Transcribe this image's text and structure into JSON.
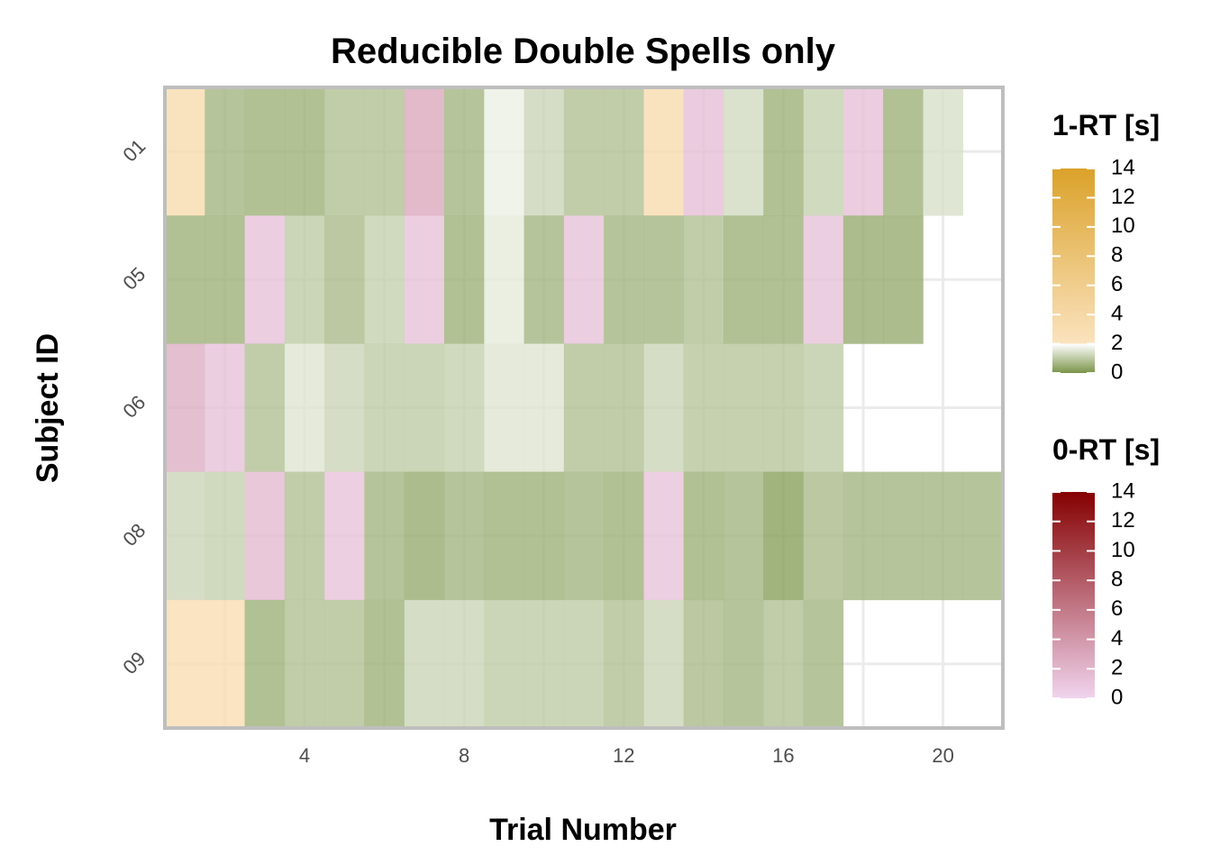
{
  "chart_data": {
    "type": "heatmap",
    "title": "Reducible Double Spells only",
    "xlabel": "Trial Number",
    "ylabel": "Subject ID",
    "x_ticks": [
      4,
      8,
      12,
      16,
      20
    ],
    "xlim": [
      0.5,
      21.5
    ],
    "subjects": [
      "01",
      "05",
      "06",
      "08",
      "09"
    ],
    "rows": [
      {
        "subject": "01",
        "cells": [
          {
            "trial": 1,
            "scale": "1-RT",
            "value": 3.5
          },
          {
            "trial": 2,
            "scale": "1-RT",
            "value": 0.6
          },
          {
            "trial": 3,
            "scale": "1-RT",
            "value": 0.5
          },
          {
            "trial": 4,
            "scale": "1-RT",
            "value": 0.5
          },
          {
            "trial": 5,
            "scale": "1-RT",
            "value": 0.8
          },
          {
            "trial": 6,
            "scale": "1-RT",
            "value": 0.8
          },
          {
            "trial": 7,
            "scale": "0-RT",
            "value": 3.0
          },
          {
            "trial": 8,
            "scale": "1-RT",
            "value": 0.6
          },
          {
            "trial": 9,
            "scale": "1-RT",
            "value": 1.7
          },
          {
            "trial": 10,
            "scale": "1-RT",
            "value": 1.2
          },
          {
            "trial": 11,
            "scale": "1-RT",
            "value": 0.8
          },
          {
            "trial": 12,
            "scale": "1-RT",
            "value": 0.8
          },
          {
            "trial": 13,
            "scale": "1-RT",
            "value": 3.5
          },
          {
            "trial": 14,
            "scale": "0-RT",
            "value": 1.5
          },
          {
            "trial": 15,
            "scale": "1-RT",
            "value": 1.3
          },
          {
            "trial": 16,
            "scale": "1-RT",
            "value": 0.5
          },
          {
            "trial": 17,
            "scale": "1-RT",
            "value": 1.1
          },
          {
            "trial": 18,
            "scale": "0-RT",
            "value": 1.4
          },
          {
            "trial": 19,
            "scale": "1-RT",
            "value": 0.5
          },
          {
            "trial": 20,
            "scale": "1-RT",
            "value": 1.4
          }
        ]
      },
      {
        "subject": "05",
        "cells": [
          {
            "trial": 1,
            "scale": "1-RT",
            "value": 0.5
          },
          {
            "trial": 2,
            "scale": "1-RT",
            "value": 0.5
          },
          {
            "trial": 3,
            "scale": "0-RT",
            "value": 1.3
          },
          {
            "trial": 4,
            "scale": "1-RT",
            "value": 1.0
          },
          {
            "trial": 5,
            "scale": "1-RT",
            "value": 0.7
          },
          {
            "trial": 6,
            "scale": "1-RT",
            "value": 1.1
          },
          {
            "trial": 7,
            "scale": "0-RT",
            "value": 1.3
          },
          {
            "trial": 8,
            "scale": "1-RT",
            "value": 0.5
          },
          {
            "trial": 9,
            "scale": "1-RT",
            "value": 1.6
          },
          {
            "trial": 10,
            "scale": "1-RT",
            "value": 0.6
          },
          {
            "trial": 11,
            "scale": "0-RT",
            "value": 1.3
          },
          {
            "trial": 12,
            "scale": "1-RT",
            "value": 0.6
          },
          {
            "trial": 13,
            "scale": "1-RT",
            "value": 0.6
          },
          {
            "trial": 14,
            "scale": "1-RT",
            "value": 0.8
          },
          {
            "trial": 15,
            "scale": "1-RT",
            "value": 0.5
          },
          {
            "trial": 16,
            "scale": "1-RT",
            "value": 0.5
          },
          {
            "trial": 17,
            "scale": "0-RT",
            "value": 1.3
          },
          {
            "trial": 18,
            "scale": "1-RT",
            "value": 0.4
          },
          {
            "trial": 19,
            "scale": "1-RT",
            "value": 0.4
          }
        ]
      },
      {
        "subject": "06",
        "cells": [
          {
            "trial": 1,
            "scale": "0-RT",
            "value": 2.6
          },
          {
            "trial": 2,
            "scale": "0-RT",
            "value": 1.3
          },
          {
            "trial": 3,
            "scale": "1-RT",
            "value": 0.8
          },
          {
            "trial": 4,
            "scale": "1-RT",
            "value": 1.5
          },
          {
            "trial": 5,
            "scale": "1-RT",
            "value": 1.2
          },
          {
            "trial": 6,
            "scale": "1-RT",
            "value": 1.0
          },
          {
            "trial": 7,
            "scale": "1-RT",
            "value": 1.0
          },
          {
            "trial": 8,
            "scale": "1-RT",
            "value": 1.1
          },
          {
            "trial": 9,
            "scale": "1-RT",
            "value": 1.5
          },
          {
            "trial": 10,
            "scale": "1-RT",
            "value": 1.5
          },
          {
            "trial": 11,
            "scale": "1-RT",
            "value": 0.8
          },
          {
            "trial": 12,
            "scale": "1-RT",
            "value": 0.8
          },
          {
            "trial": 13,
            "scale": "1-RT",
            "value": 1.2
          },
          {
            "trial": 14,
            "scale": "1-RT",
            "value": 0.9
          },
          {
            "trial": 15,
            "scale": "1-RT",
            "value": 0.9
          },
          {
            "trial": 16,
            "scale": "1-RT",
            "value": 0.9
          },
          {
            "trial": 17,
            "scale": "1-RT",
            "value": 1.0
          }
        ]
      },
      {
        "subject": "08",
        "cells": [
          {
            "trial": 1,
            "scale": "1-RT",
            "value": 1.2
          },
          {
            "trial": 2,
            "scale": "1-RT",
            "value": 1.1
          },
          {
            "trial": 3,
            "scale": "0-RT",
            "value": 1.8
          },
          {
            "trial": 4,
            "scale": "1-RT",
            "value": 0.8
          },
          {
            "trial": 5,
            "scale": "0-RT",
            "value": 1.2
          },
          {
            "trial": 6,
            "scale": "1-RT",
            "value": 0.6
          },
          {
            "trial": 7,
            "scale": "1-RT",
            "value": 0.4
          },
          {
            "trial": 8,
            "scale": "1-RT",
            "value": 0.6
          },
          {
            "trial": 9,
            "scale": "1-RT",
            "value": 0.5
          },
          {
            "trial": 10,
            "scale": "1-RT",
            "value": 0.5
          },
          {
            "trial": 11,
            "scale": "1-RT",
            "value": 0.6
          },
          {
            "trial": 12,
            "scale": "1-RT",
            "value": 0.5
          },
          {
            "trial": 13,
            "scale": "0-RT",
            "value": 1.2
          },
          {
            "trial": 14,
            "scale": "1-RT",
            "value": 0.5
          },
          {
            "trial": 15,
            "scale": "1-RT",
            "value": 0.6
          },
          {
            "trial": 16,
            "scale": "1-RT",
            "value": 0.2
          },
          {
            "trial": 17,
            "scale": "1-RT",
            "value": 0.7
          },
          {
            "trial": 18,
            "scale": "1-RT",
            "value": 0.6
          },
          {
            "trial": 19,
            "scale": "1-RT",
            "value": 0.6
          },
          {
            "trial": 20,
            "scale": "1-RT",
            "value": 0.6
          },
          {
            "trial": 21,
            "scale": "1-RT",
            "value": 0.6
          }
        ]
      },
      {
        "subject": "09",
        "cells": [
          {
            "trial": 1,
            "scale": "1-RT",
            "value": 3.3
          },
          {
            "trial": 2,
            "scale": "1-RT",
            "value": 3.3
          },
          {
            "trial": 3,
            "scale": "1-RT",
            "value": 0.5
          },
          {
            "trial": 4,
            "scale": "1-RT",
            "value": 0.8
          },
          {
            "trial": 5,
            "scale": "1-RT",
            "value": 0.8
          },
          {
            "trial": 6,
            "scale": "1-RT",
            "value": 0.5
          },
          {
            "trial": 7,
            "scale": "1-RT",
            "value": 1.2
          },
          {
            "trial": 8,
            "scale": "1-RT",
            "value": 1.2
          },
          {
            "trial": 9,
            "scale": "1-RT",
            "value": 1.0
          },
          {
            "trial": 10,
            "scale": "1-RT",
            "value": 1.0
          },
          {
            "trial": 11,
            "scale": "1-RT",
            "value": 1.0
          },
          {
            "trial": 12,
            "scale": "1-RT",
            "value": 0.8
          },
          {
            "trial": 13,
            "scale": "1-RT",
            "value": 1.2
          },
          {
            "trial": 14,
            "scale": "1-RT",
            "value": 0.7
          },
          {
            "trial": 15,
            "scale": "1-RT",
            "value": 0.6
          },
          {
            "trial": 16,
            "scale": "1-RT",
            "value": 0.8
          },
          {
            "trial": 17,
            "scale": "1-RT",
            "value": 0.6
          }
        ]
      }
    ],
    "legends": [
      {
        "title": "1-RT [s]",
        "ticks": [
          0,
          2,
          4,
          6,
          8,
          10,
          12,
          14
        ],
        "range": [
          0,
          14
        ],
        "colors": {
          "low": "#7a9448",
          "mid": "#ffffff",
          "mid_value": 2,
          "high_start": "#fbe3bf",
          "high": "#dba22a"
        }
      },
      {
        "title": "0-RT [s]",
        "ticks": [
          0,
          2,
          4,
          6,
          8,
          10,
          12,
          14
        ],
        "range": [
          0,
          14
        ],
        "colors": {
          "low": "#f1d4ee",
          "high": "#850000"
        }
      }
    ],
    "legend_position": "right",
    "grid": true
  }
}
